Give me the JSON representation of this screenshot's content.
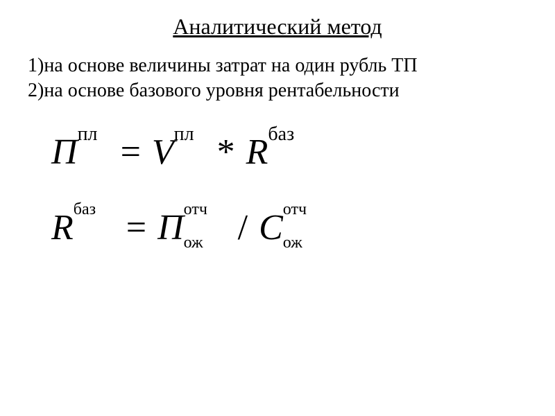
{
  "title": "Аналитический метод",
  "list": {
    "item1": "1)на основе величины затрат на один рубль ТП",
    "item2": "2)на основе базового уровня рентабельности"
  },
  "formula1": {
    "lhs_base": "П",
    "lhs_sup": "пл",
    "eq": "=",
    "rhs1_base": "V",
    "rhs1_sup": "пл",
    "mul": "*",
    "rhs2_base": "R",
    "rhs2_sup": "баз",
    "gap_sup1_width": 46,
    "gap_sup2_width": 46,
    "gap_sup3_width": 70
  },
  "formula2": {
    "lhs_base": "R",
    "lhs_sup": "баз",
    "eq": "=",
    "rhs1_base": "П",
    "rhs1_sup": "отч",
    "rhs1_sub": "ож",
    "div": "/",
    "rhs2_base": "С",
    "rhs2_sup": "отч",
    "rhs2_sub": "ож",
    "gap_sup_width": 60,
    "gap_both_width": 62
  },
  "style": {
    "background": "#ffffff",
    "text_color": "#000000",
    "title_fontsize": 32,
    "list_fontsize": 28,
    "formula_fontsize": 52,
    "sup_fontsize": 28,
    "formula2_sup_fontsize": 24
  }
}
